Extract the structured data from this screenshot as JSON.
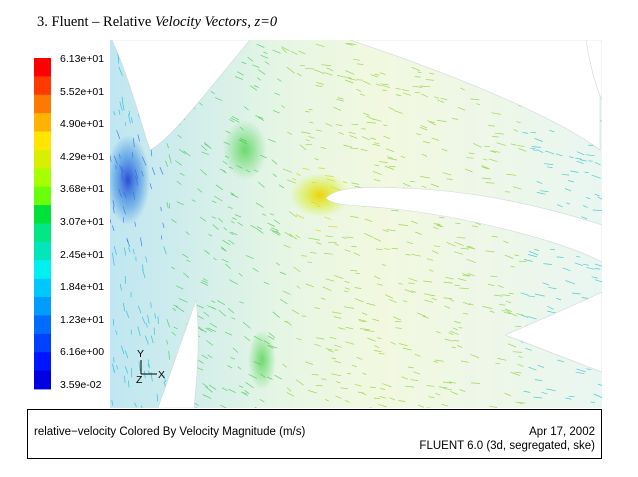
{
  "slide": {
    "title_prefix": "3. Fluent – Relative ",
    "title_italic": "Velocity Vectors, z=0"
  },
  "legend": {
    "labels": [
      "6.13e+01",
      "5.52e+01",
      "4.90e+01",
      "4.29e+01",
      "3.68e+01",
      "3.07e+01",
      "2.45e+01",
      "1.84e+01",
      "1.23e+01",
      "6.16e+00",
      "3.59e-02"
    ],
    "colors": [
      "#ff0000",
      "#ff3a00",
      "#ff7a00",
      "#ffb300",
      "#ffe600",
      "#d8f000",
      "#a6ff00",
      "#6aff0a",
      "#00e23a",
      "#00e682",
      "#00e6b8",
      "#00f0f0",
      "#00c8ff",
      "#009cff",
      "#006cff",
      "#0040ff",
      "#0016ff",
      "#0000e0"
    ]
  },
  "axes": {
    "y_label": "Y",
    "z_label": "Z",
    "x_label": "X"
  },
  "caption": {
    "description": "relative−velocity Colored By Velocity Magnitude (m/s)",
    "date": "Apr 17, 2002",
    "version": "FLUENT 6.0 (3d, segregated, ske)"
  }
}
